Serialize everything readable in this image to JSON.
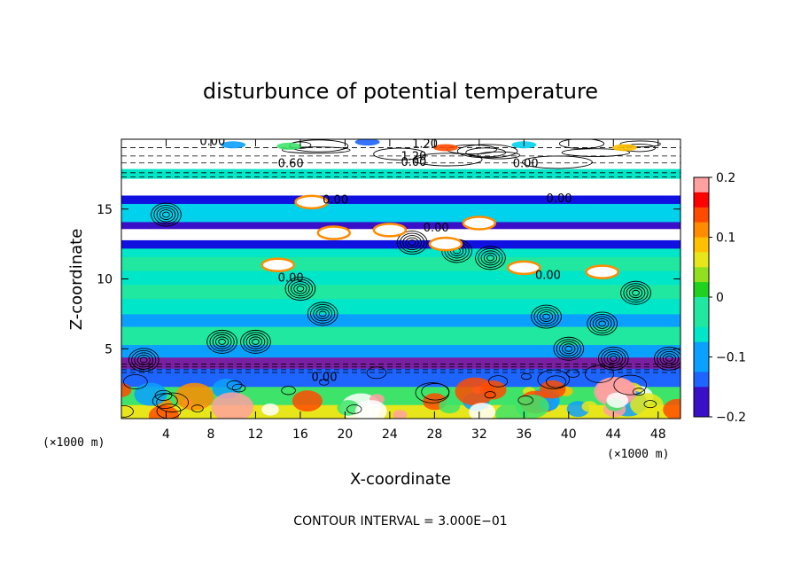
{
  "chart_data": {
    "type": "heatmap",
    "title": "disturbunce of potential temperature",
    "xlabel": "X-coordinate",
    "ylabel": "Z-coordinate",
    "x_unit": "(×1000 m)",
    "y_unit": "(×1000 m)",
    "xlim": [
      0,
      50
    ],
    "ylim": [
      0,
      20
    ],
    "x_ticks": [
      "4",
      "8",
      "12",
      "16",
      "20",
      "24",
      "28",
      "32",
      "36",
      "40",
      "44",
      "48"
    ],
    "y_ticks": [
      "5",
      "10",
      "15"
    ],
    "colorbar": {
      "range": [
        -0.2,
        0.2
      ],
      "ticks": [
        "0.2",
        "0.1",
        "0",
        "−0.1",
        "−0.2"
      ]
    },
    "contour_labels": [
      "0.00",
      "1.20",
      "0.60",
      "1.20",
      "0.00",
      "0.00",
      "0.00",
      "0.00",
      "0.00",
      "0.00",
      "0.00",
      "0.00"
    ],
    "bands": [
      {
        "z": [
          0.0,
          1.0
        ],
        "value": 0.08
      },
      {
        "z": [
          1.0,
          2.3
        ],
        "value": 0.0
      },
      {
        "z": [
          2.3,
          3.6
        ],
        "value": -0.12
      },
      {
        "z": [
          3.6,
          4.4
        ],
        "value": -0.2
      },
      {
        "z": [
          4.4,
          5.3
        ],
        "value": -0.09
      },
      {
        "z": [
          5.3,
          6.6
        ],
        "value": -0.03
      },
      {
        "z": [
          6.6,
          7.5
        ],
        "value": -0.1
      },
      {
        "z": [
          7.5,
          8.6
        ],
        "value": -0.05
      },
      {
        "z": [
          8.6,
          9.6
        ],
        "value": -0.02
      },
      {
        "z": [
          9.6,
          10.6
        ],
        "value": -0.04
      },
      {
        "z": [
          10.6,
          11.6
        ],
        "value": -0.02
      },
      {
        "z": [
          11.6,
          12.2
        ],
        "value": -0.06
      },
      {
        "z": [
          12.2,
          12.8
        ],
        "value": -0.16
      },
      {
        "z": [
          12.8,
          13.6
        ],
        "value": 0.3
      },
      {
        "z": [
          13.6,
          14.1
        ],
        "value": -0.17
      },
      {
        "z": [
          14.1,
          15.4
        ],
        "value": -0.07
      },
      {
        "z": [
          15.4,
          16.0
        ],
        "value": -0.15
      },
      {
        "z": [
          16.0,
          17.2
        ],
        "value": 0.3
      },
      {
        "z": [
          17.2,
          17.9
        ],
        "value": -0.05
      },
      {
        "z": [
          17.9,
          20.0
        ],
        "value": 0.3
      }
    ],
    "contour_interval_text": "CONTOUR INTERVAL = 3.000E−01"
  }
}
